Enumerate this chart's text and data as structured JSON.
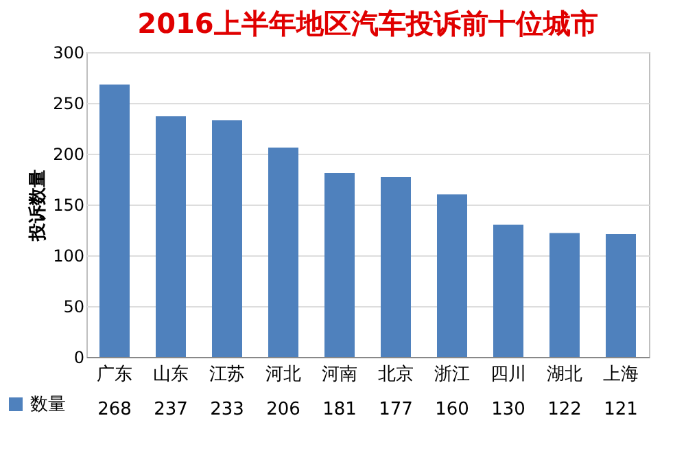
{
  "chart_data": {
    "type": "bar",
    "title": "2016上半年地区汽车投诉前十位城市",
    "ylabel": "投诉数量",
    "categories": [
      "广东",
      "山东",
      "江苏",
      "河北",
      "河南",
      "北京",
      "浙江",
      "四川",
      "湖北",
      "上海"
    ],
    "series": [
      {
        "name": "数量",
        "color": "#4f81bd",
        "values": [
          268,
          237,
          233,
          206,
          181,
          177,
          160,
          130,
          122,
          121
        ]
      }
    ],
    "ylim": [
      0,
      300
    ],
    "yticks": [
      0,
      50,
      100,
      150,
      200,
      250,
      300
    ],
    "grid": "y",
    "legend": "bottom left",
    "data_labels": true
  }
}
